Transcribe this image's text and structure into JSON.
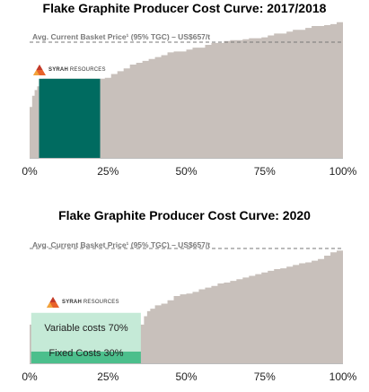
{
  "chart_data": [
    {
      "type": "area",
      "title": "Flake Graphite Producer Cost Curve: 2017/2018",
      "reference_line": {
        "label": "Avg. Current Basket Price¹ (95% TGC) – US$657/t",
        "value": 657
      },
      "x_ticks": [
        "0%",
        "25%",
        "50%",
        "75%",
        "100%"
      ],
      "xlim": [
        0,
        100
      ],
      "ylim": [
        0,
        800
      ],
      "grid": false,
      "legend": "none",
      "colors": {
        "curve": "#c8c0bb",
        "highlight": "#006b60",
        "reference_line": "#777777"
      },
      "highlight": {
        "name": "Syrah Resources",
        "x_start": 3,
        "x_end": 22.5,
        "value": 420
      },
      "logo": {
        "brand": "SYRAH",
        "suffix": " RESOURCES"
      },
      "curve": {
        "x": [
          0,
          0.8,
          1.6,
          2.4,
          3.2,
          4.2,
          5.5,
          7,
          9,
          11,
          13,
          15,
          17,
          19,
          21,
          22.5,
          24,
          26,
          28,
          30,
          32,
          34,
          36,
          38,
          40,
          42,
          44,
          46,
          48,
          50,
          52,
          54,
          56,
          58,
          60,
          62,
          64,
          66,
          68,
          70,
          72,
          74,
          76,
          78,
          80,
          82,
          84,
          86,
          88,
          90,
          92,
          94,
          96,
          98,
          100
        ],
        "y": [
          270,
          330,
          360,
          380,
          395,
          420,
          420,
          420,
          420,
          420,
          420,
          420,
          420,
          420,
          420,
          420,
          425,
          445,
          460,
          475,
          495,
          505,
          515,
          525,
          535,
          545,
          560,
          565,
          565,
          575,
          585,
          585,
          600,
          610,
          610,
          620,
          625,
          625,
          630,
          635,
          635,
          640,
          650,
          660,
          660,
          670,
          680,
          680,
          690,
          700,
          700,
          705,
          710,
          720,
          720
        ]
      }
    },
    {
      "type": "area",
      "title": "Flake Graphite Producer Cost Curve: 2020",
      "reference_line": {
        "label": "Avg. Current Basket Price¹ (95% TGC) – US$657/t",
        "value": 657
      },
      "x_ticks": [
        "0%",
        "25%",
        "50%",
        "75%",
        "100%"
      ],
      "xlim": [
        0,
        100
      ],
      "ylim": [
        0,
        720
      ],
      "grid": false,
      "legend": "none",
      "colors": {
        "curve": "#c8c0bb",
        "variable": "#c5ead7",
        "fixed": "#4cbf8c",
        "reference_line": "#777777"
      },
      "highlight": {
        "name": "Syrah Resources",
        "x_start": 0.5,
        "x_end": 35.5,
        "segments": [
          {
            "label": "Fixed Costs 30%",
            "value": 70
          },
          {
            "label": "Variable costs 70%",
            "value": 230
          }
        ]
      },
      "logo": {
        "brand": "SYRAH",
        "suffix": " RESOURCES"
      },
      "curve": {
        "x": [
          0,
          2,
          4,
          6,
          8,
          10,
          12,
          14,
          16,
          18,
          20,
          22,
          24,
          26,
          28,
          30,
          32,
          34,
          35.5,
          36.5,
          37.5,
          38.5,
          40,
          42,
          44,
          46,
          48,
          50,
          52,
          54,
          56,
          58,
          60,
          62,
          64,
          66,
          68,
          70,
          72,
          74,
          76,
          78,
          80,
          82,
          84,
          86,
          88,
          90,
          92,
          94,
          96,
          98,
          100
        ],
        "y": [
          230,
          230,
          230,
          230,
          230,
          230,
          230,
          230,
          230,
          230,
          230,
          230,
          230,
          230,
          230,
          230,
          230,
          230,
          230,
          280,
          310,
          325,
          345,
          355,
          375,
          400,
          410,
          415,
          425,
          440,
          450,
          460,
          475,
          480,
          490,
          500,
          510,
          520,
          530,
          540,
          550,
          560,
          565,
          575,
          585,
          595,
          600,
          610,
          620,
          640,
          660,
          670,
          670
        ]
      }
    }
  ]
}
